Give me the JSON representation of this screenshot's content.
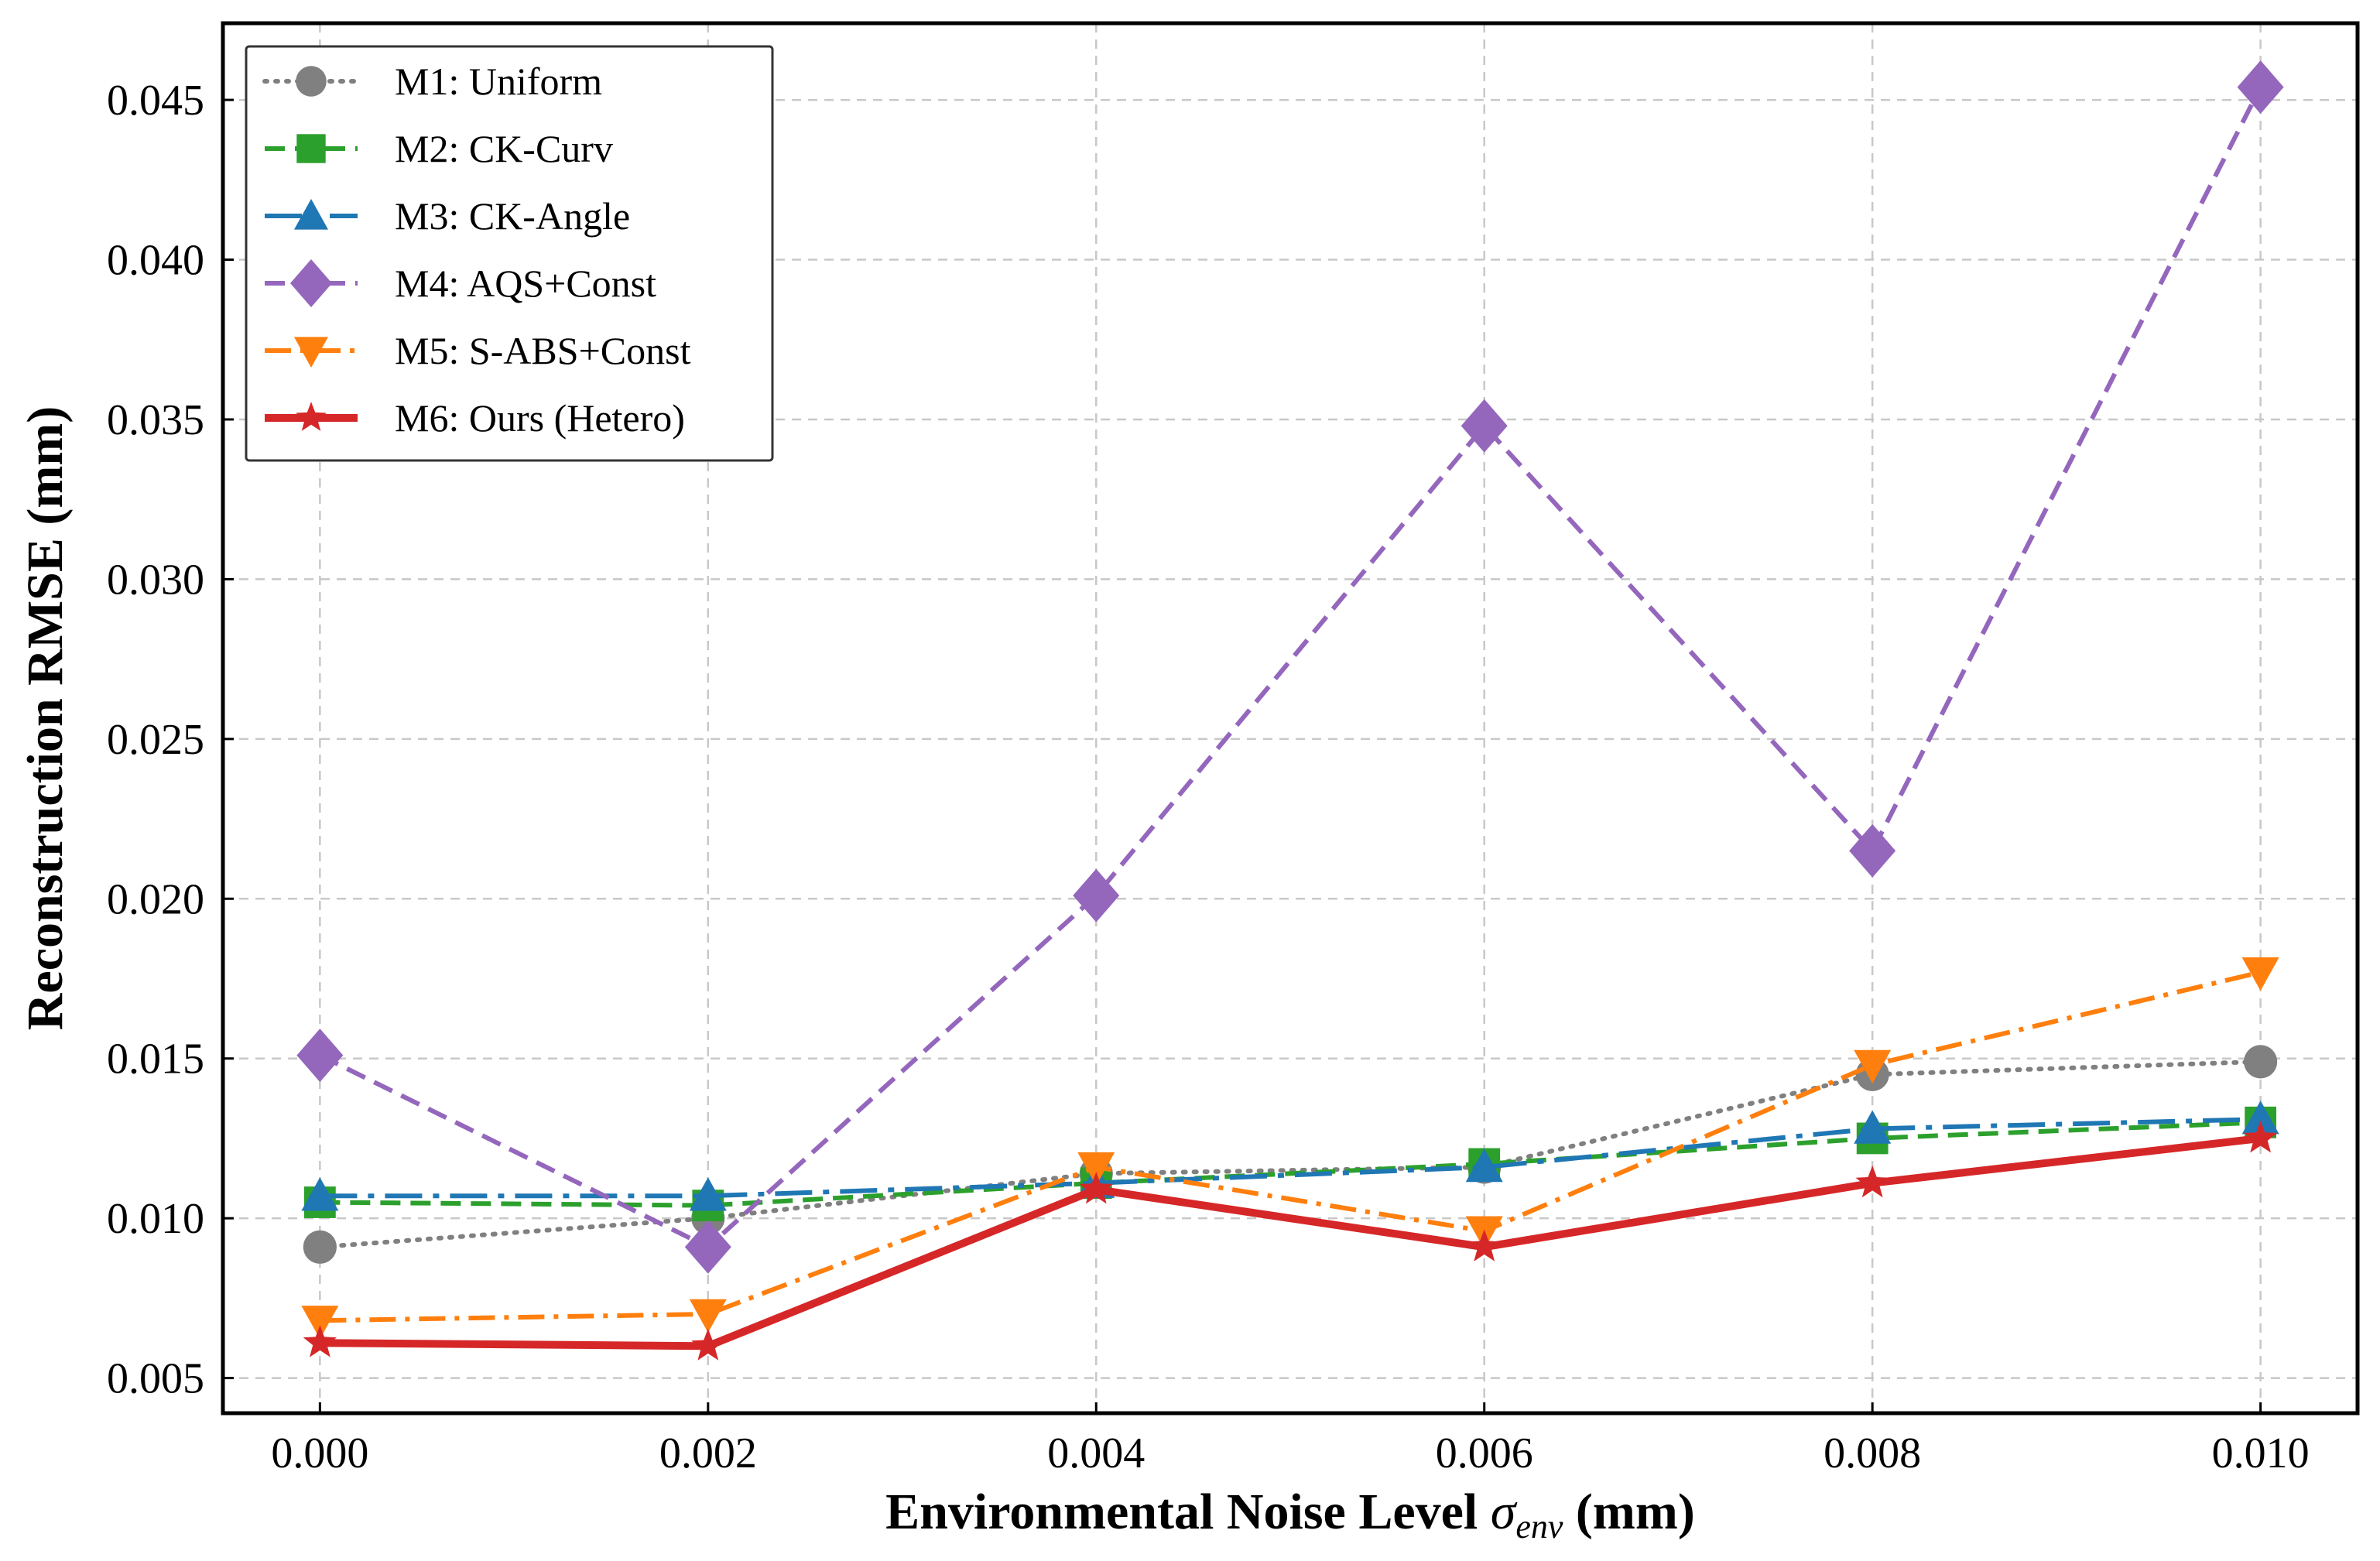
{
  "chart_data": {
    "type": "line",
    "title": "",
    "xlabel_prefix": "Environmental Noise Level ",
    "xlabel_symbol": "σ",
    "xlabel_subscript": "env",
    "xlabel_suffix": " (mm)",
    "ylabel": "Reconstruction RMSE (mm)",
    "x": [
      0.0,
      0.002,
      0.004,
      0.006,
      0.008,
      0.01
    ],
    "x_tick_labels": [
      "0.000",
      "0.002",
      "0.004",
      "0.006",
      "0.008",
      "0.010"
    ],
    "y_ticks": [
      0.005,
      0.01,
      0.015,
      0.02,
      0.025,
      0.03,
      0.035,
      0.04,
      0.045
    ],
    "y_tick_labels": [
      "0.005",
      "0.010",
      "0.015",
      "0.020",
      "0.025",
      "0.030",
      "0.035",
      "0.040",
      "0.045"
    ],
    "xlim": [
      -0.0005,
      0.0105
    ],
    "ylim": [
      0.0039,
      0.0474
    ],
    "grid": true,
    "legend_position": "top-left",
    "series": [
      {
        "name": "M1: Uniform",
        "color": "#808080",
        "linestyle": "dotted",
        "marker": "circle",
        "values": [
          0.0091,
          0.01,
          0.0114,
          0.0116,
          0.0145,
          0.0149
        ]
      },
      {
        "name": "M2: CK-Curv",
        "color": "#2ca02c",
        "linestyle": "dashed",
        "marker": "square",
        "values": [
          0.0105,
          0.0104,
          0.0111,
          0.0117,
          0.0125,
          0.013
        ]
      },
      {
        "name": "M3: CK-Angle",
        "color": "#1f77b4",
        "linestyle": "dashdot-long",
        "marker": "triangle-up",
        "values": [
          0.0107,
          0.0107,
          0.0111,
          0.0116,
          0.0128,
          0.0131
        ]
      },
      {
        "name": "M4: AQS+Const",
        "color": "#9467bd",
        "linestyle": "dashed",
        "marker": "diamond",
        "values": [
          0.0151,
          0.0091,
          0.0201,
          0.0348,
          0.0215,
          0.0454
        ]
      },
      {
        "name": "M5: S-ABS+Const",
        "color": "#ff7f0e",
        "linestyle": "dashdot",
        "marker": "triangle-down",
        "values": [
          0.0068,
          0.007,
          0.0116,
          0.0096,
          0.0148,
          0.0177
        ]
      },
      {
        "name": "M6: Ours (Hetero)",
        "color": "#d62728",
        "linestyle": "solid",
        "marker": "star",
        "values": [
          0.0061,
          0.006,
          0.0109,
          0.0091,
          0.0111,
          0.0125
        ]
      }
    ]
  }
}
